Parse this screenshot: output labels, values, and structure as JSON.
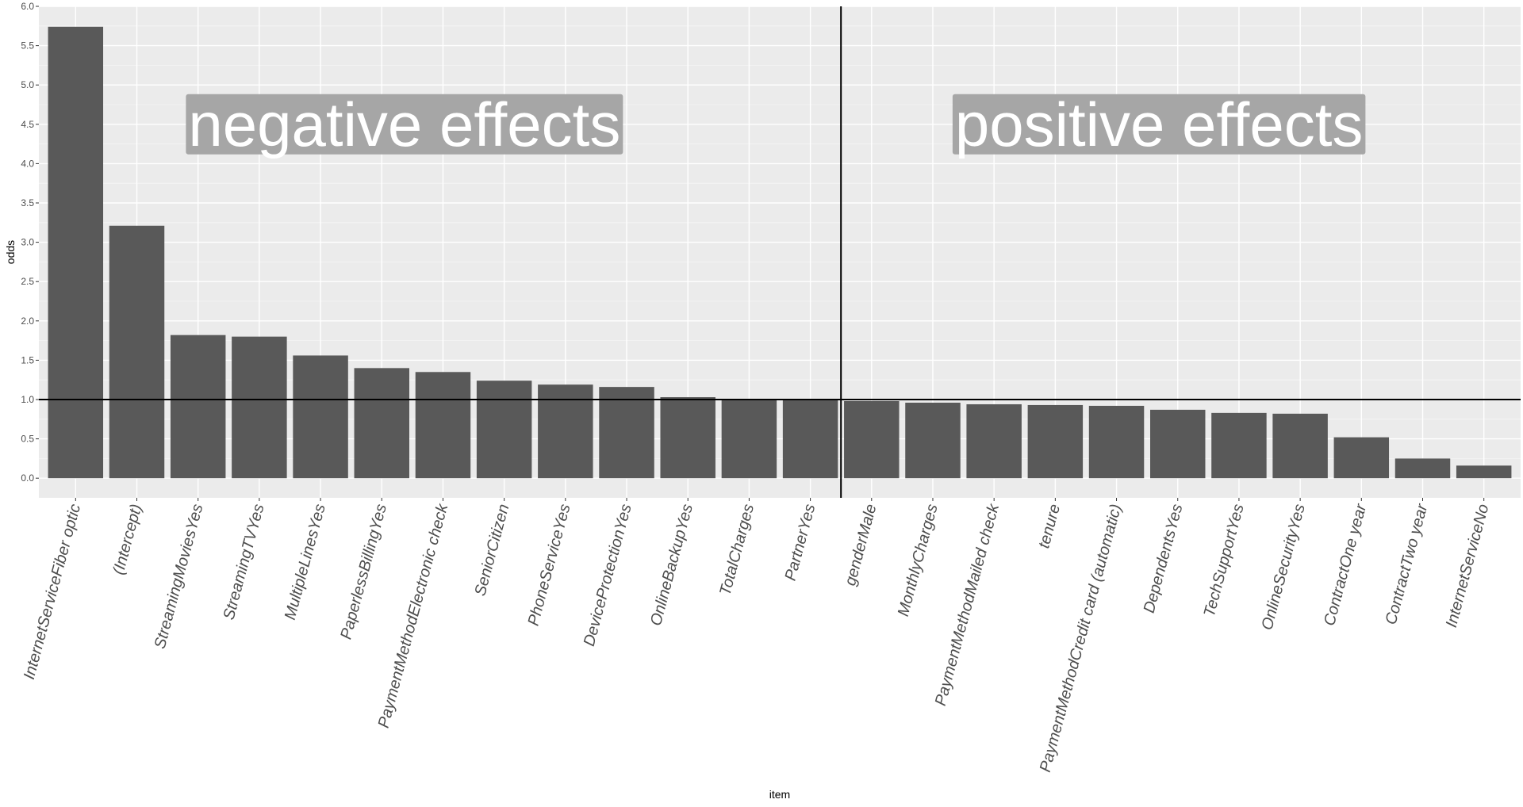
{
  "chart_data": {
    "type": "bar",
    "xlabel": "item",
    "ylabel": "odds",
    "ylim": [
      -0.25,
      6.0
    ],
    "yticks": [
      "0.0",
      "0.5",
      "1.0",
      "1.5",
      "2.0",
      "2.5",
      "3.0",
      "3.5",
      "4.0",
      "4.5",
      "5.0",
      "5.5",
      "6.0"
    ],
    "categories": [
      "InternetServiceFiber optic",
      "(Intercept)",
      "StreamingMoviesYes",
      "StreamingTVYes",
      "MultipleLinesYes",
      "PaperlessBillingYes",
      "PaymentMethodElectronic check",
      "SeniorCitizen",
      "PhoneServiceYes",
      "DeviceProtectionYes",
      "OnlineBackupYes",
      "TotalCharges",
      "PartnerYes",
      "genderMale",
      "MonthlyCharges",
      "PaymentMethodMailed check",
      "tenure",
      "PaymentMethodCredit card (automatic)",
      "DependentsYes",
      "TechSupportYes",
      "OnlineSecurityYes",
      "ContractOne year",
      "ContractTwo year",
      "InternetServiceNo"
    ],
    "values": [
      5.74,
      3.21,
      1.82,
      1.8,
      1.56,
      1.4,
      1.35,
      1.24,
      1.19,
      1.16,
      1.03,
      1.0,
      1.0,
      0.98,
      0.96,
      0.94,
      0.93,
      0.92,
      0.87,
      0.83,
      0.82,
      0.52,
      0.25,
      0.16
    ],
    "hline": 1.0,
    "vline_after_category": "PartnerYes",
    "annotations": [
      "negative effects",
      "positive effects"
    ],
    "grid": true,
    "colors": {
      "bar": "#595959",
      "panel": "#ebebeb",
      "grid_major": "#ffffff",
      "grid_minor": "#f5f5f5",
      "annotation_fill": "#a6a6a6",
      "ref_line": "#000000"
    }
  }
}
